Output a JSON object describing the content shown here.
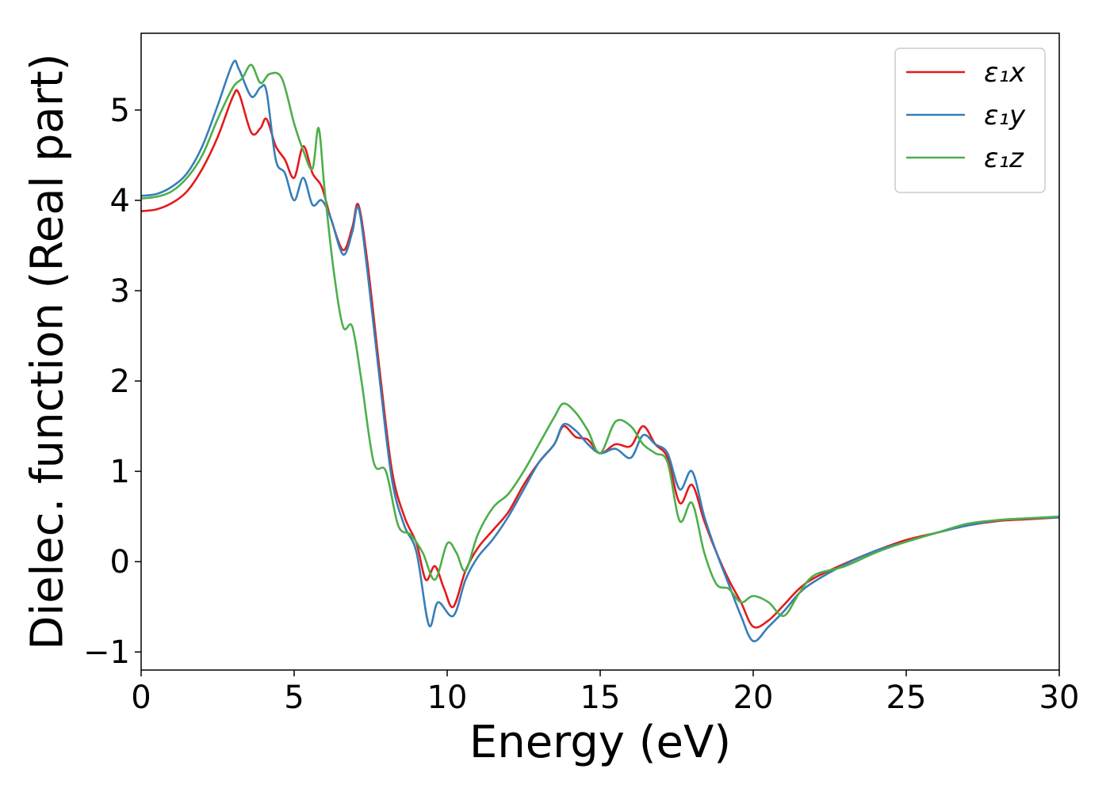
{
  "chart_data": {
    "type": "line",
    "title": "",
    "xlabel": "Energy (eV)",
    "ylabel": "Dielec. function (Real part)",
    "xlim": [
      0,
      30
    ],
    "ylim": [
      -1.2,
      5.85
    ],
    "xticks": [
      0,
      5,
      10,
      15,
      20,
      25,
      30
    ],
    "xtick_labels": [
      "0",
      "5",
      "10",
      "15",
      "20",
      "25",
      "30"
    ],
    "yticks": [
      -1,
      0,
      1,
      2,
      3,
      4,
      5
    ],
    "ytick_labels": [
      "−1",
      "0",
      "1",
      "2",
      "3",
      "4",
      "5"
    ],
    "grid": false,
    "legend_position": "top-right",
    "series": [
      {
        "name": "ε₁x",
        "color": "#e41a1c",
        "x": [
          0,
          0.5,
          1,
          1.5,
          2,
          2.5,
          3,
          3.2,
          3.6,
          3.9,
          4.1,
          4.4,
          4.7,
          5.0,
          5.3,
          5.6,
          5.9,
          6.2,
          6.6,
          6.9,
          7.1,
          7.4,
          7.8,
          8.2,
          8.6,
          9.0,
          9.3,
          9.6,
          9.9,
          10.2,
          10.6,
          11.0,
          11.5,
          12.0,
          12.5,
          13.0,
          13.5,
          13.8,
          14.2,
          14.6,
          15.0,
          15.5,
          16.0,
          16.4,
          16.8,
          17.2,
          17.6,
          18.0,
          18.4,
          18.8,
          19.2,
          19.6,
          20.0,
          20.5,
          21.0,
          21.5,
          22.0,
          23.0,
          24.0,
          25.0,
          26.0,
          27.0,
          28.0,
          29.0,
          30.0
        ],
        "y": [
          3.88,
          3.9,
          3.97,
          4.1,
          4.35,
          4.7,
          5.15,
          5.18,
          4.75,
          4.8,
          4.9,
          4.6,
          4.45,
          4.25,
          4.6,
          4.3,
          4.15,
          3.8,
          3.45,
          3.7,
          3.95,
          3.3,
          2.1,
          1.0,
          0.5,
          0.2,
          -0.2,
          -0.05,
          -0.3,
          -0.5,
          -0.1,
          0.15,
          0.35,
          0.55,
          0.85,
          1.1,
          1.3,
          1.5,
          1.38,
          1.35,
          1.2,
          1.3,
          1.28,
          1.5,
          1.3,
          1.15,
          0.65,
          0.85,
          0.45,
          0.1,
          -0.2,
          -0.45,
          -0.72,
          -0.65,
          -0.48,
          -0.3,
          -0.18,
          -0.02,
          0.12,
          0.24,
          0.32,
          0.4,
          0.45,
          0.47,
          0.49
        ]
      },
      {
        "name": "ε₁y",
        "color": "#377eb8",
        "x": [
          0,
          0.5,
          1,
          1.5,
          2,
          2.5,
          3,
          3.2,
          3.6,
          3.9,
          4.1,
          4.4,
          4.7,
          5.0,
          5.3,
          5.6,
          5.9,
          6.2,
          6.6,
          6.9,
          7.1,
          7.4,
          7.8,
          8.2,
          8.6,
          9.0,
          9.4,
          9.7,
          10.2,
          10.6,
          11.0,
          11.5,
          12.0,
          12.5,
          13.0,
          13.5,
          13.8,
          14.2,
          14.6,
          15.0,
          15.5,
          16.0,
          16.4,
          16.8,
          17.2,
          17.6,
          18.0,
          18.4,
          18.8,
          19.2,
          19.6,
          20.0,
          20.5,
          21.0,
          21.5,
          22.0,
          23.0,
          24.0,
          25.0,
          26.0,
          27.0,
          28.0,
          29.0,
          30.0
        ],
        "y": [
          4.05,
          4.07,
          4.15,
          4.3,
          4.6,
          5.05,
          5.52,
          5.45,
          5.15,
          5.25,
          5.2,
          4.45,
          4.3,
          4.0,
          4.25,
          3.95,
          4.0,
          3.8,
          3.4,
          3.65,
          3.92,
          3.2,
          2.0,
          0.9,
          0.4,
          0.1,
          -0.7,
          -0.45,
          -0.6,
          -0.2,
          0.05,
          0.25,
          0.5,
          0.8,
          1.1,
          1.3,
          1.52,
          1.45,
          1.3,
          1.2,
          1.25,
          1.15,
          1.4,
          1.3,
          1.2,
          0.8,
          1.0,
          0.5,
          0.1,
          -0.25,
          -0.6,
          -0.88,
          -0.72,
          -0.55,
          -0.35,
          -0.22,
          -0.03,
          0.12,
          0.22,
          0.32,
          0.4,
          0.46,
          0.48,
          0.49
        ]
      },
      {
        "name": "ε₁z",
        "color": "#4daf4a",
        "x": [
          0,
          0.5,
          1,
          1.5,
          2,
          2.5,
          3,
          3.3,
          3.6,
          3.9,
          4.2,
          4.6,
          5.0,
          5.3,
          5.6,
          5.8,
          6.0,
          6.3,
          6.6,
          6.9,
          7.2,
          7.6,
          8.0,
          8.4,
          8.8,
          9.2,
          9.6,
          10.0,
          10.3,
          10.6,
          11.0,
          11.5,
          12.0,
          12.5,
          13.0,
          13.5,
          13.8,
          14.2,
          14.6,
          15.0,
          15.5,
          16.0,
          16.4,
          16.8,
          17.2,
          17.6,
          18.0,
          18.4,
          18.8,
          19.2,
          19.6,
          20.0,
          20.5,
          21.0,
          21.5,
          22.0,
          23.0,
          24.0,
          25.0,
          26.0,
          27.0,
          28.0,
          29.0,
          30.0
        ],
        "y": [
          4.02,
          4.04,
          4.1,
          4.25,
          4.5,
          4.9,
          5.25,
          5.35,
          5.5,
          5.3,
          5.4,
          5.35,
          4.85,
          4.55,
          4.35,
          4.8,
          4.1,
          3.2,
          2.6,
          2.6,
          2.0,
          1.1,
          1.0,
          0.4,
          0.3,
          0.1,
          -0.2,
          0.2,
          0.1,
          -0.1,
          0.3,
          0.6,
          0.75,
          1.0,
          1.3,
          1.6,
          1.75,
          1.65,
          1.45,
          1.2,
          1.55,
          1.5,
          1.3,
          1.2,
          1.1,
          0.45,
          0.65,
          0.1,
          -0.25,
          -0.3,
          -0.45,
          -0.38,
          -0.45,
          -0.6,
          -0.35,
          -0.15,
          -0.05,
          0.1,
          0.22,
          0.32,
          0.42,
          0.46,
          0.48,
          0.5
        ]
      }
    ]
  }
}
